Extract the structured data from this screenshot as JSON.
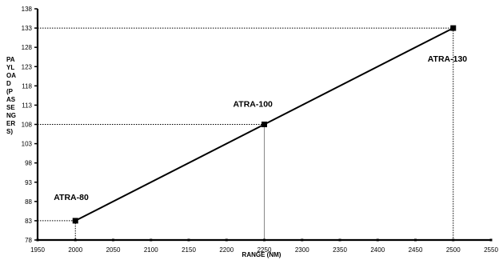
{
  "chart_data": {
    "type": "line",
    "xlabel": "RANGE (NM)",
    "ylabel_lines": [
      "PA",
      "YL",
      "OA",
      "D",
      "(P",
      "AS",
      "SE",
      "NG",
      "ER",
      "S)"
    ],
    "xlim": [
      1950,
      2550
    ],
    "ylim": [
      78,
      138
    ],
    "x_ticks": [
      1950,
      2000,
      2050,
      2100,
      2150,
      2200,
      2250,
      2300,
      2350,
      2400,
      2450,
      2500,
      2550
    ],
    "x_tick_labels": [
      "1950",
      "2000",
      "2050",
      "2100",
      "2150",
      "2200",
      "2250",
      "2300",
      "2350",
      "2400",
      "2450",
      "2500",
      "2550"
    ],
    "y_ticks": [
      78,
      83,
      88,
      93,
      98,
      103,
      108,
      113,
      118,
      123,
      128,
      133,
      138
    ],
    "y_tick_labels": [
      "78",
      "83",
      "88",
      "93",
      "98",
      "103",
      "108",
      "113",
      "118",
      "123",
      "128",
      "133",
      "138"
    ],
    "points": [
      {
        "x": 2000,
        "y": 83,
        "label": "ATRA-80"
      },
      {
        "x": 2250,
        "y": 108,
        "label": "ATRA-100"
      },
      {
        "x": 2500,
        "y": 133,
        "label": "ATRA-130"
      }
    ],
    "grid": false,
    "line_color": "#000000"
  }
}
